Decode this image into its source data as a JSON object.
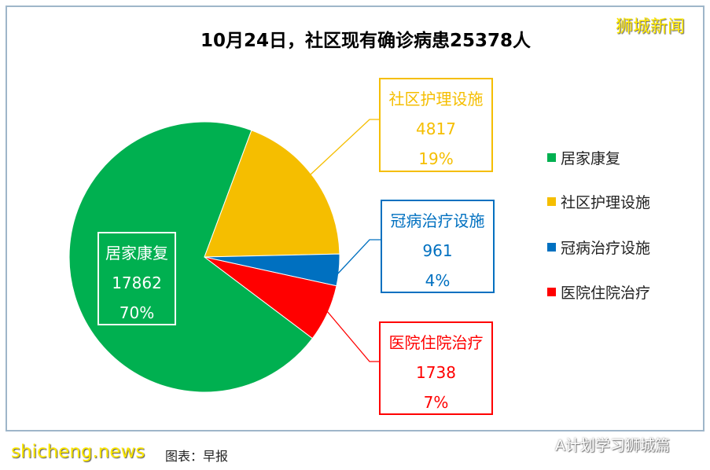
{
  "watermarks": {
    "top_right": "狮城新闻",
    "bottom_left_site": "shicheng.news",
    "bottom_left_caption": "图表：早报",
    "bottom_right": "A计划学习狮城篇"
  },
  "chart_data": {
    "type": "pie",
    "title": "10月24日，社区现有确诊病患25378人",
    "categories": [
      "居家康复",
      "社区护理设施",
      "冠病治疗设施",
      "医院住院治疗"
    ],
    "values": [
      17862,
      4817,
      961,
      1738
    ],
    "percent_labels": [
      "70%",
      "19%",
      "4%",
      "7%"
    ],
    "value_labels": [
      "17862",
      "4817",
      "961",
      "1738"
    ],
    "colors": [
      "#00B050",
      "#F5BE00",
      "#0070C0",
      "#FF0000"
    ],
    "label_colors": [
      "#FFFFFF",
      "#F5BE00",
      "#0070C0",
      "#FF0000"
    ],
    "first_slice_angle_deg": 127,
    "legend_position": "right"
  }
}
